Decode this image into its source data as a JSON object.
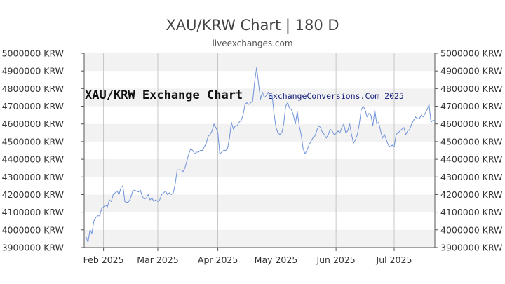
{
  "header": {
    "title": "XAU/KRW Chart | 180 D",
    "subtitle": "liveexchanges.com"
  },
  "watermarks": {
    "chart_label": "XAU/KRW Exchange Chart",
    "credit": "ExchangeConversions.Com 2025"
  },
  "colors": {
    "line": "#6f92d9",
    "band": "#f2f2f2",
    "grid": "#bbbbbb",
    "axis": "#555555"
  },
  "chart_data": {
    "type": "line",
    "title": "XAU/KRW Chart | 180 D",
    "ylim": [
      3900000,
      5000000
    ],
    "y_ticks": [
      3900000,
      4000000,
      4100000,
      4200000,
      4300000,
      4400000,
      4500000,
      4600000,
      4700000,
      4800000,
      4900000,
      5000000
    ],
    "y_tick_labels": [
      "3900000 KRW",
      "4000000 KRW",
      "4100000 KRW",
      "4200000 KRW",
      "4300000 KRW",
      "4400000 KRW",
      "4500000 KRW",
      "4600000 KRW",
      "4700000 KRW",
      "4800000 KRW",
      "4900000 KRW",
      "5000000 KRW"
    ],
    "x_range": [
      "2025-01-22",
      "2025-07-22"
    ],
    "x_ticks": [
      {
        "date": "2025-02-01",
        "label": "Feb 2025"
      },
      {
        "date": "2025-03-01",
        "label": "Mar 2025"
      },
      {
        "date": "2025-04-01",
        "label": "Apr 2025"
      },
      {
        "date": "2025-05-01",
        "label": "May 2025"
      },
      {
        "date": "2025-06-01",
        "label": "Jun 2025"
      },
      {
        "date": "2025-07-01",
        "label": "Jul 2025"
      }
    ],
    "grid": "alternating horizontal bands, vertical month lines",
    "series": [
      {
        "points": [
          [
            "2025-01-23",
            3960000
          ],
          [
            "2025-01-24",
            3930000
          ],
          [
            "2025-01-25",
            4000000
          ],
          [
            "2025-01-26",
            3980000
          ],
          [
            "2025-01-27",
            4050000
          ],
          [
            "2025-01-28",
            4070000
          ],
          [
            "2025-01-29",
            4080000
          ],
          [
            "2025-01-30",
            4080000
          ],
          [
            "2025-01-31",
            4120000
          ],
          [
            "2025-02-02",
            4140000
          ],
          [
            "2025-02-03",
            4130000
          ],
          [
            "2025-02-04",
            4170000
          ],
          [
            "2025-02-05",
            4160000
          ],
          [
            "2025-02-06",
            4200000
          ],
          [
            "2025-02-07",
            4210000
          ],
          [
            "2025-02-08",
            4220000
          ],
          [
            "2025-02-09",
            4200000
          ],
          [
            "2025-02-10",
            4240000
          ],
          [
            "2025-02-11",
            4250000
          ],
          [
            "2025-02-12",
            4160000
          ],
          [
            "2025-02-13",
            4155000
          ],
          [
            "2025-02-14",
            4160000
          ],
          [
            "2025-02-15",
            4180000
          ],
          [
            "2025-02-16",
            4220000
          ],
          [
            "2025-02-17",
            4225000
          ],
          [
            "2025-02-18",
            4220000
          ],
          [
            "2025-02-19",
            4215000
          ],
          [
            "2025-02-20",
            4225000
          ],
          [
            "2025-02-21",
            4190000
          ],
          [
            "2025-02-22",
            4175000
          ],
          [
            "2025-02-23",
            4180000
          ],
          [
            "2025-02-24",
            4200000
          ],
          [
            "2025-02-25",
            4170000
          ],
          [
            "2025-02-26",
            4180000
          ],
          [
            "2025-02-27",
            4160000
          ],
          [
            "2025-02-28",
            4170000
          ],
          [
            "2025-03-01",
            4160000
          ],
          [
            "2025-03-02",
            4170000
          ],
          [
            "2025-03-03",
            4200000
          ],
          [
            "2025-03-04",
            4210000
          ],
          [
            "2025-03-05",
            4220000
          ],
          [
            "2025-03-06",
            4200000
          ],
          [
            "2025-03-07",
            4210000
          ],
          [
            "2025-03-08",
            4200000
          ],
          [
            "2025-03-09",
            4210000
          ],
          [
            "2025-03-10",
            4260000
          ],
          [
            "2025-03-11",
            4340000
          ],
          [
            "2025-03-12",
            4340000
          ],
          [
            "2025-03-13",
            4340000
          ],
          [
            "2025-03-14",
            4330000
          ],
          [
            "2025-03-15",
            4350000
          ],
          [
            "2025-03-16",
            4390000
          ],
          [
            "2025-03-17",
            4430000
          ],
          [
            "2025-03-18",
            4460000
          ],
          [
            "2025-03-19",
            4450000
          ],
          [
            "2025-03-20",
            4430000
          ],
          [
            "2025-03-21",
            4440000
          ],
          [
            "2025-03-22",
            4440000
          ],
          [
            "2025-03-23",
            4450000
          ],
          [
            "2025-03-24",
            4450000
          ],
          [
            "2025-03-25",
            4470000
          ],
          [
            "2025-03-26",
            4490000
          ],
          [
            "2025-03-27",
            4530000
          ],
          [
            "2025-03-28",
            4540000
          ],
          [
            "2025-03-29",
            4560000
          ],
          [
            "2025-03-30",
            4600000
          ],
          [
            "2025-03-31",
            4580000
          ],
          [
            "2025-04-01",
            4550000
          ],
          [
            "2025-04-02",
            4430000
          ],
          [
            "2025-04-03",
            4440000
          ],
          [
            "2025-04-04",
            4450000
          ],
          [
            "2025-04-05",
            4450000
          ],
          [
            "2025-04-06",
            4460000
          ],
          [
            "2025-04-07",
            4520000
          ],
          [
            "2025-04-08",
            4610000
          ],
          [
            "2025-04-09",
            4570000
          ],
          [
            "2025-04-10",
            4590000
          ],
          [
            "2025-04-11",
            4590000
          ],
          [
            "2025-04-12",
            4610000
          ],
          [
            "2025-04-13",
            4620000
          ],
          [
            "2025-04-14",
            4650000
          ],
          [
            "2025-04-15",
            4710000
          ],
          [
            "2025-04-16",
            4720000
          ],
          [
            "2025-04-17",
            4710000
          ],
          [
            "2025-04-18",
            4720000
          ],
          [
            "2025-04-19",
            4730000
          ],
          [
            "2025-04-20",
            4840000
          ],
          [
            "2025-04-21",
            4920000
          ],
          [
            "2025-04-22",
            4830000
          ],
          [
            "2025-04-23",
            4740000
          ],
          [
            "2025-04-24",
            4780000
          ],
          [
            "2025-04-25",
            4750000
          ],
          [
            "2025-04-26",
            4760000
          ],
          [
            "2025-04-27",
            4780000
          ],
          [
            "2025-04-28",
            4750000
          ],
          [
            "2025-04-29",
            4760000
          ],
          [
            "2025-04-30",
            4660000
          ],
          [
            "2025-05-01",
            4580000
          ],
          [
            "2025-05-02",
            4550000
          ],
          [
            "2025-05-03",
            4540000
          ],
          [
            "2025-05-04",
            4550000
          ],
          [
            "2025-05-05",
            4600000
          ],
          [
            "2025-05-06",
            4700000
          ],
          [
            "2025-05-07",
            4720000
          ],
          [
            "2025-05-08",
            4690000
          ],
          [
            "2025-05-09",
            4680000
          ],
          [
            "2025-05-10",
            4650000
          ],
          [
            "2025-05-11",
            4600000
          ],
          [
            "2025-05-12",
            4670000
          ],
          [
            "2025-05-13",
            4590000
          ],
          [
            "2025-05-14",
            4540000
          ],
          [
            "2025-05-15",
            4460000
          ],
          [
            "2025-05-16",
            4430000
          ],
          [
            "2025-05-17",
            4450000
          ],
          [
            "2025-05-18",
            4480000
          ],
          [
            "2025-05-19",
            4500000
          ],
          [
            "2025-05-20",
            4520000
          ],
          [
            "2025-05-21",
            4530000
          ],
          [
            "2025-05-22",
            4560000
          ],
          [
            "2025-05-23",
            4590000
          ],
          [
            "2025-05-24",
            4580000
          ],
          [
            "2025-05-25",
            4550000
          ],
          [
            "2025-05-26",
            4540000
          ],
          [
            "2025-05-27",
            4520000
          ],
          [
            "2025-05-28",
            4540000
          ],
          [
            "2025-05-29",
            4570000
          ],
          [
            "2025-05-30",
            4560000
          ],
          [
            "2025-05-31",
            4540000
          ],
          [
            "2025-06-01",
            4545000
          ],
          [
            "2025-06-02",
            4560000
          ],
          [
            "2025-06-03",
            4550000
          ],
          [
            "2025-06-04",
            4580000
          ],
          [
            "2025-06-05",
            4600000
          ],
          [
            "2025-06-06",
            4550000
          ],
          [
            "2025-06-07",
            4560000
          ],
          [
            "2025-06-08",
            4600000
          ],
          [
            "2025-06-09",
            4540000
          ],
          [
            "2025-06-10",
            4490000
          ],
          [
            "2025-06-11",
            4510000
          ],
          [
            "2025-06-12",
            4540000
          ],
          [
            "2025-06-13",
            4600000
          ],
          [
            "2025-06-14",
            4680000
          ],
          [
            "2025-06-15",
            4700000
          ],
          [
            "2025-06-16",
            4680000
          ],
          [
            "2025-06-17",
            4640000
          ],
          [
            "2025-06-18",
            4660000
          ],
          [
            "2025-06-19",
            4650000
          ],
          [
            "2025-06-20",
            4590000
          ],
          [
            "2025-06-21",
            4680000
          ],
          [
            "2025-06-22",
            4600000
          ],
          [
            "2025-06-23",
            4610000
          ],
          [
            "2025-06-24",
            4560000
          ],
          [
            "2025-06-25",
            4520000
          ],
          [
            "2025-06-26",
            4540000
          ],
          [
            "2025-06-27",
            4510000
          ],
          [
            "2025-06-28",
            4480000
          ],
          [
            "2025-06-29",
            4470000
          ],
          [
            "2025-06-30",
            4480000
          ],
          [
            "2025-07-01",
            4470000
          ],
          [
            "2025-07-02",
            4540000
          ],
          [
            "2025-07-03",
            4550000
          ],
          [
            "2025-07-04",
            4560000
          ],
          [
            "2025-07-05",
            4570000
          ],
          [
            "2025-07-06",
            4580000
          ],
          [
            "2025-07-07",
            4540000
          ],
          [
            "2025-07-08",
            4560000
          ],
          [
            "2025-07-09",
            4570000
          ],
          [
            "2025-07-10",
            4600000
          ],
          [
            "2025-07-11",
            4620000
          ],
          [
            "2025-07-12",
            4640000
          ],
          [
            "2025-07-13",
            4630000
          ],
          [
            "2025-07-14",
            4630000
          ],
          [
            "2025-07-15",
            4650000
          ],
          [
            "2025-07-16",
            4640000
          ],
          [
            "2025-07-17",
            4660000
          ],
          [
            "2025-07-18",
            4680000
          ],
          [
            "2025-07-19",
            4710000
          ],
          [
            "2025-07-20",
            4610000
          ],
          [
            "2025-07-21",
            4620000
          ],
          [
            "2025-07-22",
            4620000
          ]
        ]
      }
    ]
  }
}
